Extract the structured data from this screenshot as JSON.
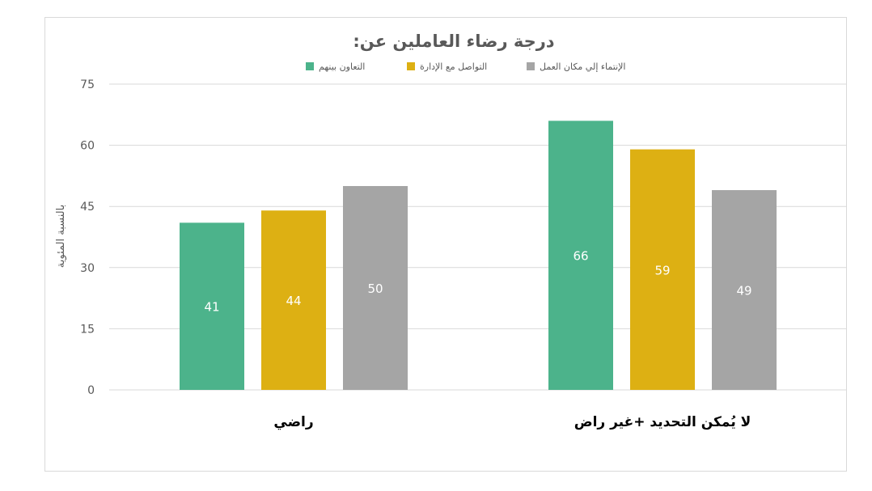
{
  "chart_data": {
    "type": "bar",
    "title": "درجة رضاء العاملين عن:",
    "ylabel": "بالنسبة المئوية",
    "xlabel": "",
    "ylim": [
      0,
      75
    ],
    "yticks": [
      0,
      15,
      30,
      45,
      60,
      75
    ],
    "ytick_labels": [
      "0",
      "15",
      "30",
      "45",
      "60",
      "75"
    ],
    "grid": true,
    "legend_position": "top",
    "categories": [
      "راضي",
      "لا يُمكن التحديد +غير راض"
    ],
    "series": [
      {
        "name": "التعاون بينهم",
        "color": "#4cb38b",
        "values": [
          41,
          66
        ],
        "labels": [
          "41",
          "66"
        ]
      },
      {
        "name": "التواصل مع الإدارة",
        "color": "#ddb013",
        "values": [
          44,
          59
        ],
        "labels": [
          "44",
          "59"
        ]
      },
      {
        "name": "الإنتماء إلي مكان العمل",
        "color": "#a5a5a5",
        "values": [
          50,
          49
        ],
        "labels": [
          "50",
          "49"
        ]
      }
    ]
  }
}
